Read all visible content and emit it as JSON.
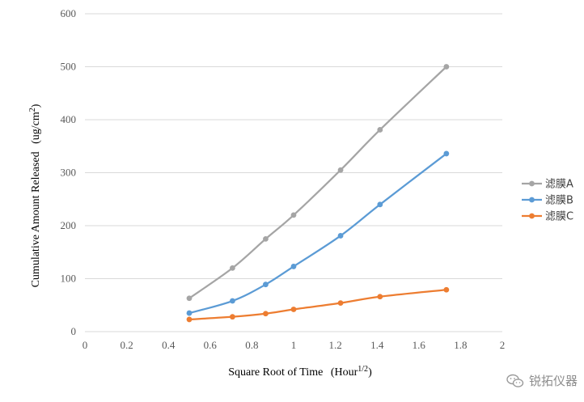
{
  "chart_data": {
    "type": "line",
    "title": "",
    "xlabel": "Square Root of Time",
    "xlabel_unit_base": "(Hour",
    "xlabel_unit_sup": "1/2",
    "xlabel_unit_close": ")",
    "ylabel": "Cumulative Amount Released",
    "ylabel_unit_base": "(ug/cm",
    "ylabel_unit_sup": "2",
    "ylabel_unit_close": ")",
    "xlim": [
      0,
      2
    ],
    "ylim": [
      0,
      600
    ],
    "x_ticks": [
      "0",
      "0.2",
      "0.4",
      "0.6",
      "0.8",
      "1",
      "1.2",
      "1.4",
      "1.6",
      "1.8",
      "2"
    ],
    "x_tick_values": [
      0,
      0.2,
      0.4,
      0.6,
      0.8,
      1.0,
      1.2,
      1.4,
      1.6,
      1.8,
      2.0
    ],
    "y_ticks": [
      "0",
      "100",
      "200",
      "300",
      "400",
      "500",
      "600"
    ],
    "y_tick_values": [
      0,
      100,
      200,
      300,
      400,
      500,
      600
    ],
    "grid": "horizontal",
    "legend_position": "right",
    "x": [
      0.5,
      0.707,
      0.866,
      1.0,
      1.225,
      1.414,
      1.732
    ],
    "series": [
      {
        "name": "滤膜A",
        "color": "#a5a5a5",
        "values": [
          63,
          120,
          175,
          220,
          305,
          381,
          500
        ]
      },
      {
        "name": "滤膜B",
        "color": "#5b9bd5",
        "values": [
          35,
          58,
          89,
          123,
          181,
          240,
          336
        ]
      },
      {
        "name": "滤膜C",
        "color": "#ed7d31",
        "values": [
          23,
          28,
          34,
          42,
          54,
          66,
          79
        ]
      }
    ]
  },
  "watermark": {
    "text": "锐拓仪器",
    "icon": "wechat-icon"
  }
}
